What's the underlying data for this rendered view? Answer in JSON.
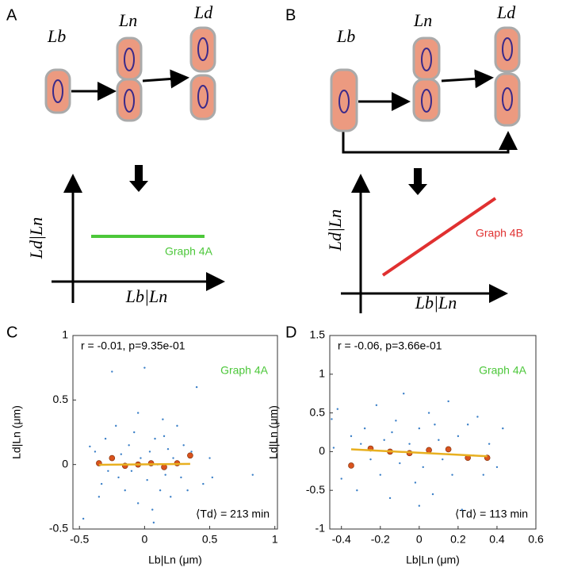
{
  "panels": [
    "A",
    "B",
    "C",
    "D"
  ],
  "diagrams": {
    "lb": "Lb",
    "ln": "Ln",
    "ld": "Ld",
    "y_label": "Ld|Ln",
    "x_label": "Lb|Ln",
    "graph_a": "Graph 4A",
    "graph_b": "Graph 4B"
  },
  "chart_data": [
    {
      "type": "scatter",
      "xlabel": "Lb|Ln (μm)",
      "ylabel": "Ld|Ln (μm)",
      "xlim": [
        -0.55,
        1.02
      ],
      "ylim": [
        -0.5,
        1
      ],
      "xticks": [
        -0.5,
        0,
        0.5,
        1
      ],
      "yticks": [
        -0.5,
        0,
        0.5,
        1
      ],
      "annotations": [
        "r = -0.01, p=9.35e-01",
        "Graph 4A",
        "⟨Td⟩ = 213 min"
      ],
      "series": [
        {
          "color": "#3a7fc7",
          "x": [
            -0.47,
            -0.42,
            -0.38,
            -0.33,
            -0.3,
            -0.28,
            -0.25,
            -0.22,
            -0.2,
            -0.18,
            -0.15,
            -0.12,
            -0.1,
            -0.08,
            -0.05,
            -0.03,
            0,
            0.02,
            0.04,
            0.06,
            0.08,
            0.1,
            0.12,
            0.14,
            0.16,
            0.18,
            0.2,
            0.22,
            0.25,
            0.28,
            0.3,
            0.33,
            0.36,
            0.4,
            0.45,
            0.5,
            0.52,
            0.83,
            -0.05,
            0.07,
            -0.35,
            0.15
          ],
          "values": [
            -0.42,
            0.14,
            0.1,
            -0.15,
            0.2,
            -0.05,
            0.72,
            0.3,
            -0.1,
            0.08,
            -0.2,
            0.15,
            -0.05,
            0.25,
            -0.3,
            0.05,
            0.75,
            -0.12,
            0.1,
            -0.35,
            0.2,
            0,
            -0.2,
            0.35,
            -0.08,
            0.12,
            -0.25,
            0.05,
            0.3,
            -0.1,
            0.15,
            -0.2,
            0.1,
            0.6,
            -0.15,
            0.05,
            -0.1,
            -0.08,
            0.4,
            -0.45,
            -0.25,
            0.22
          ]
        },
        {
          "color": "#d9531e",
          "x": [
            -0.35,
            -0.25,
            -0.15,
            -0.05,
            0.05,
            0.15,
            0.25,
            0.35
          ],
          "values": [
            0.01,
            0.05,
            -0.01,
            0,
            0.01,
            -0.02,
            0.01,
            0.07
          ]
        },
        {
          "color": "#e8b020",
          "x": [
            -0.35,
            0.35
          ],
          "values": [
            -0.002,
            0.005
          ]
        }
      ]
    },
    {
      "type": "scatter",
      "xlabel": "Lb|Ln (μm)",
      "ylabel": "Ld|Ln (μm)",
      "xlim": [
        -0.46,
        0.6
      ],
      "ylim": [
        -1,
        1.5
      ],
      "xticks": [
        -0.4,
        -0.2,
        0,
        0.2,
        0.4,
        0.6
      ],
      "yticks": [
        -1,
        -0.5,
        0,
        0.5,
        1,
        1.5
      ],
      "annotations": [
        "r = -0.06, p=3.66e-01",
        "Graph 4A",
        "⟨Td⟩ = 113 min"
      ],
      "series": [
        {
          "color": "#3a7fc7",
          "x": [
            -0.45,
            -0.44,
            -0.42,
            -0.4,
            -0.35,
            -0.32,
            -0.28,
            -0.25,
            -0.22,
            -0.2,
            -0.18,
            -0.15,
            -0.12,
            -0.1,
            -0.08,
            -0.05,
            -0.02,
            0,
            0.02,
            0.05,
            0.07,
            0.1,
            0.12,
            0.15,
            0.17,
            0.2,
            0.22,
            0.25,
            0.28,
            0.3,
            0.33,
            0.36,
            0.4,
            0.43,
            -0.3,
            0,
            -0.14,
            0.08
          ],
          "values": [
            0.42,
            0.05,
            0.55,
            -0.35,
            0.2,
            -0.5,
            0.3,
            -0.1,
            0.6,
            -0.3,
            0.15,
            -0.6,
            0.4,
            -0.15,
            0.75,
            0.1,
            -0.4,
            0.3,
            -0.2,
            0.5,
            -0.55,
            0.15,
            -0.1,
            0.65,
            -0.3,
            0.2,
            -0.75,
            0.35,
            -0.05,
            0.45,
            -0.3,
            0.1,
            -0.2,
            0.3,
            0.1,
            -0.7,
            0.25,
            0.35
          ]
        },
        {
          "color": "#d9531e",
          "x": [
            -0.35,
            -0.25,
            -0.15,
            -0.05,
            0.05,
            0.15,
            0.25,
            0.35
          ],
          "values": [
            -0.18,
            0.04,
            0,
            -0.02,
            0.02,
            0.03,
            -0.08,
            -0.08
          ]
        },
        {
          "color": "#e8b020",
          "x": [
            -0.35,
            0.35
          ],
          "values": [
            0.03,
            -0.06
          ]
        }
      ]
    }
  ]
}
